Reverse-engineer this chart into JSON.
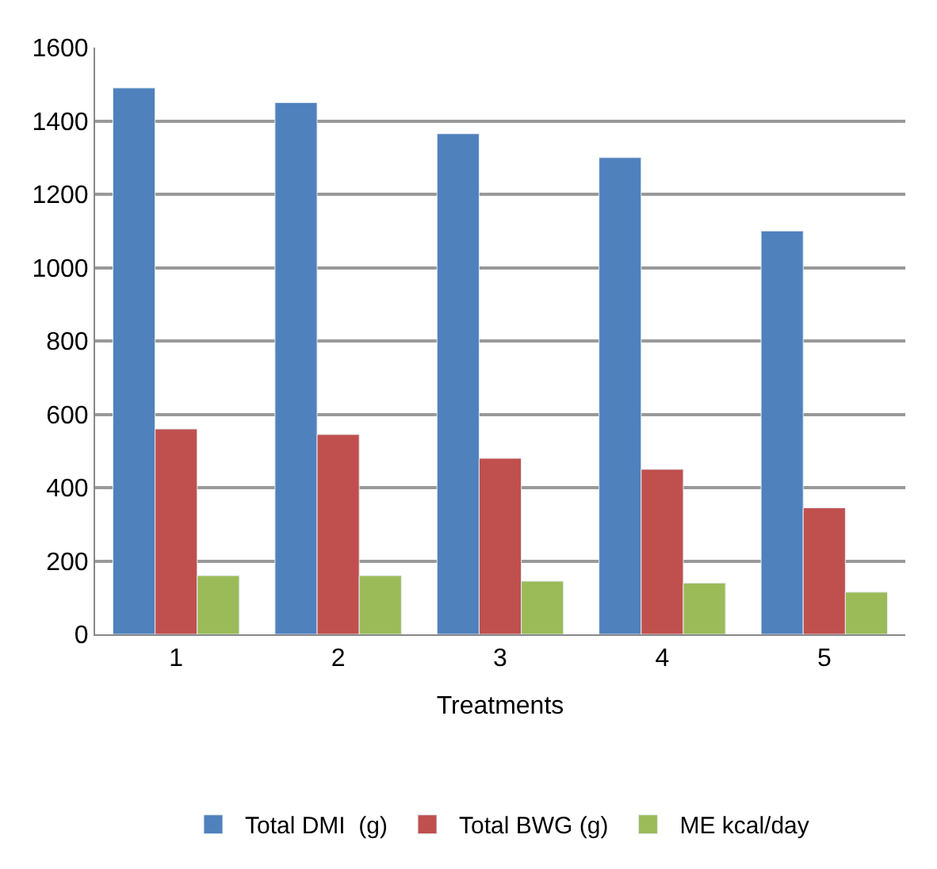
{
  "chart_data": {
    "type": "bar",
    "xlabel": "Treatments",
    "categories": [
      "1",
      "2",
      "3",
      "4",
      "5"
    ],
    "series": [
      {
        "name": "Total DMI  (g)",
        "color": "#4f81bd",
        "values": [
          1490,
          1450,
          1365,
          1300,
          1100
        ]
      },
      {
        "name": "Total BWG (g)",
        "color": "#c0504d",
        "values": [
          560,
          545,
          480,
          450,
          345
        ]
      },
      {
        "name": "ME kcal/day",
        "color": "#9bbb59",
        "values": [
          160,
          160,
          145,
          140,
          115
        ]
      }
    ],
    "ylim": [
      0,
      1600
    ],
    "yticks": [
      0,
      200,
      400,
      600,
      800,
      1000,
      1200,
      1400,
      1600
    ],
    "grid": "y",
    "legend": "bottom"
  }
}
